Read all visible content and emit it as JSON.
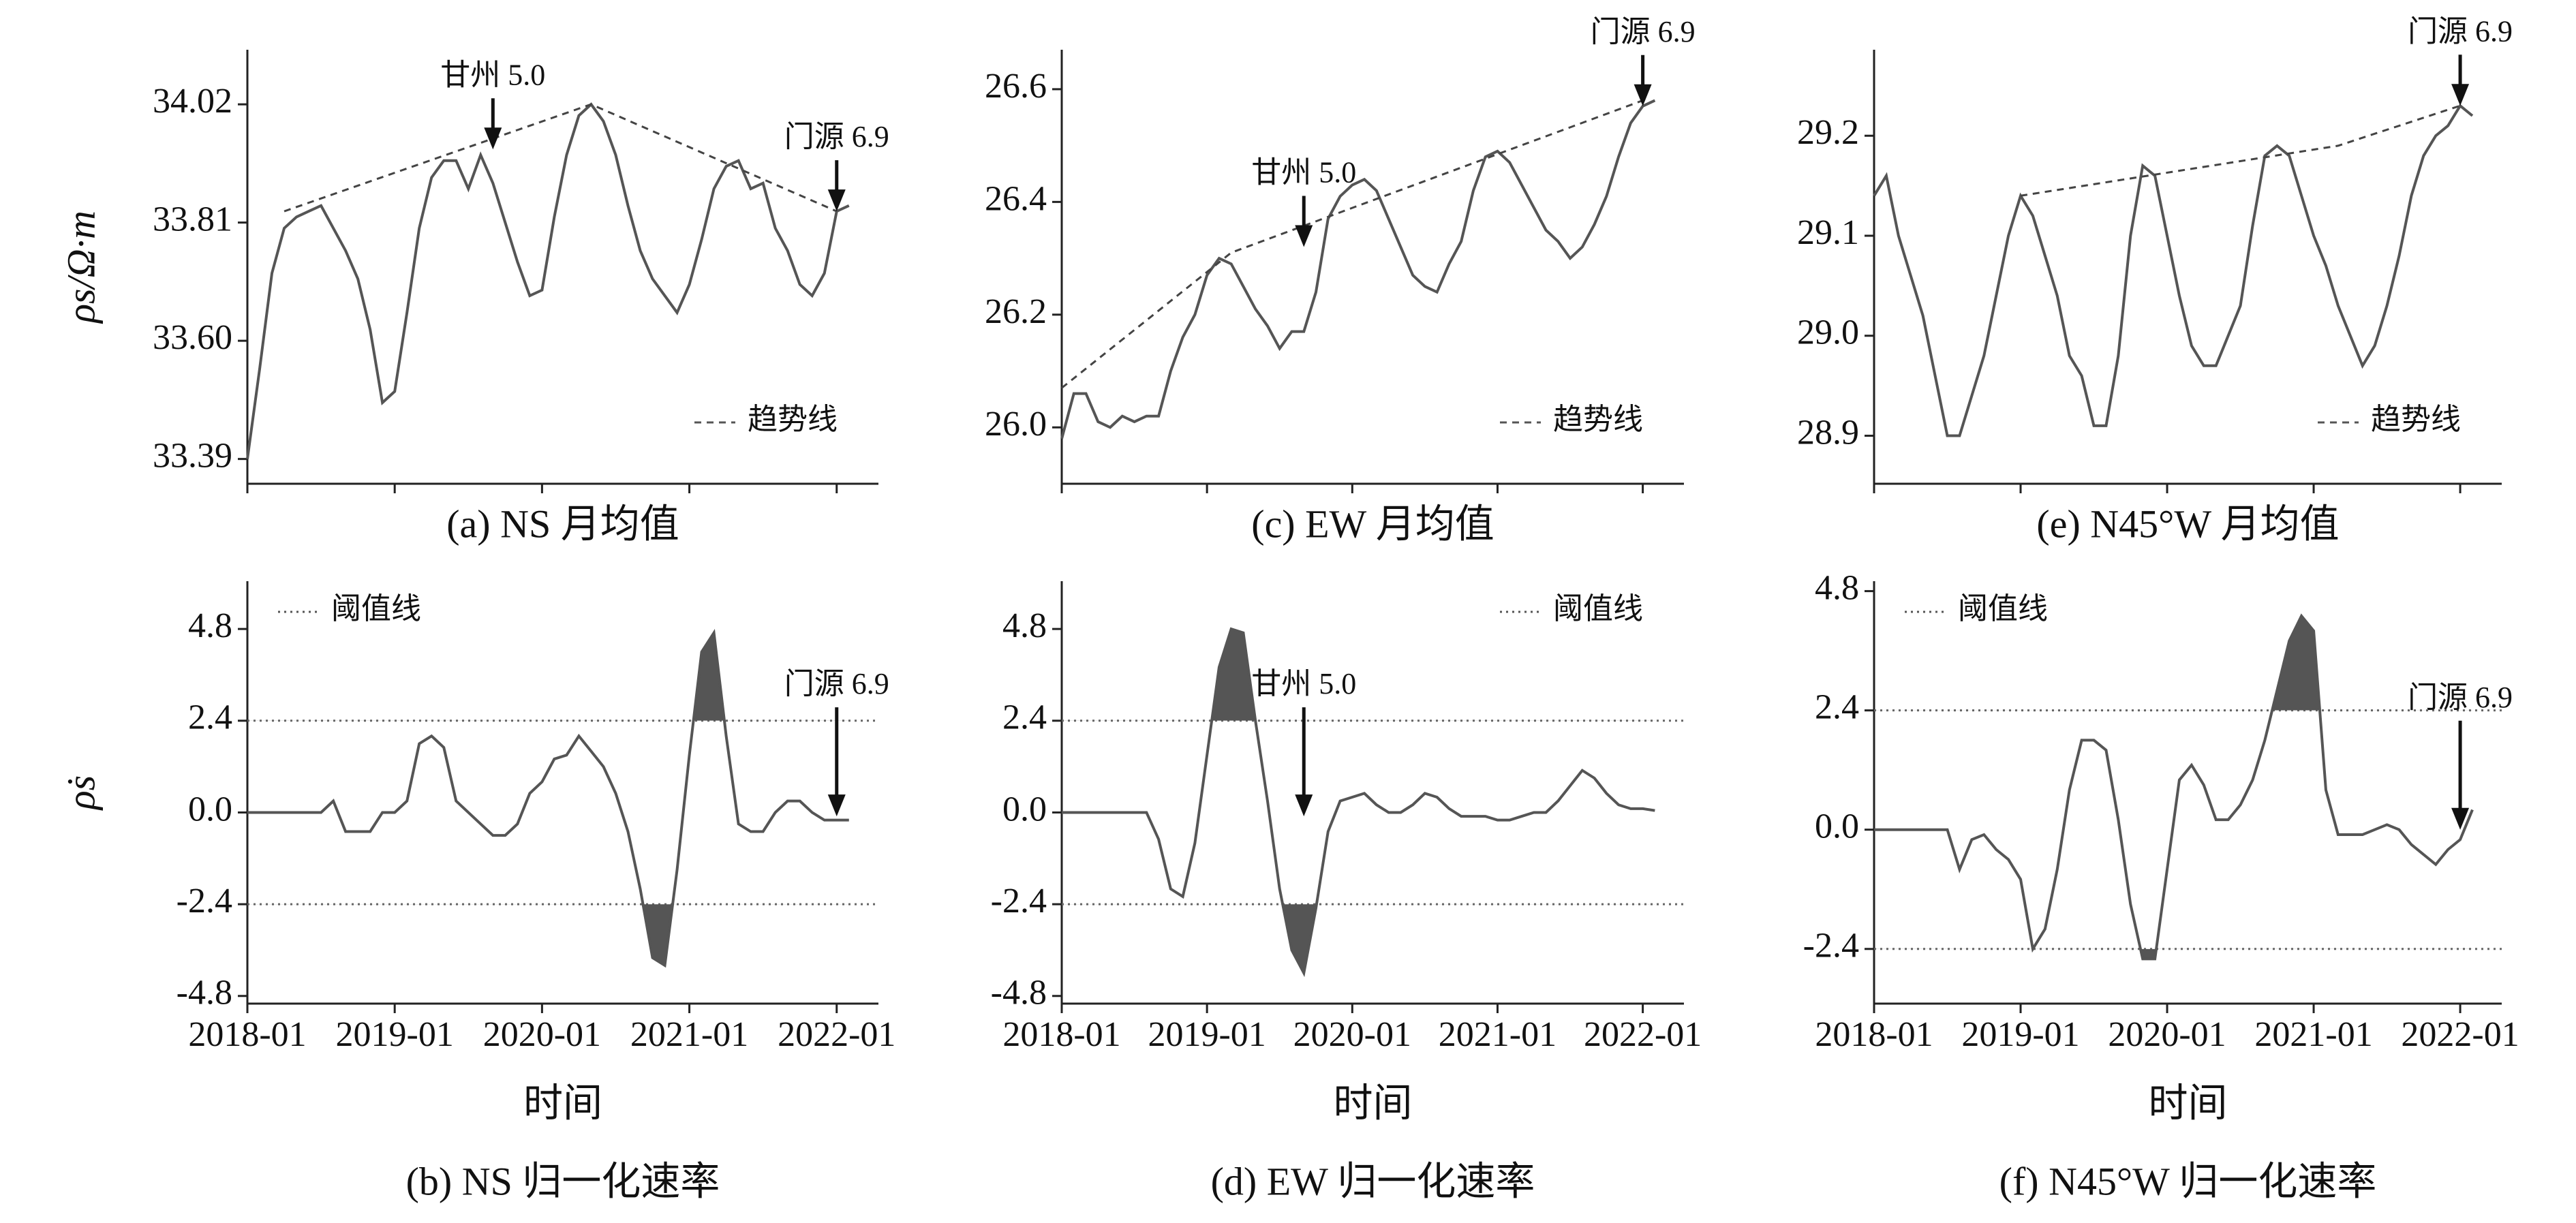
{
  "chart_data": [
    {
      "type": "line",
      "caption": "(a) NS 月均值",
      "ylabel": "ρs/Ω·m",
      "x": [
        "2018-01",
        "2018-02",
        "2018-03",
        "2018-04",
        "2018-05",
        "2018-06",
        "2018-07",
        "2018-08",
        "2018-09",
        "2018-10",
        "2018-11",
        "2018-12",
        "2019-01",
        "2019-02",
        "2019-03",
        "2019-04",
        "2019-05",
        "2019-06",
        "2019-07",
        "2019-08",
        "2019-09",
        "2019-10",
        "2019-11",
        "2019-12",
        "2020-01",
        "2020-02",
        "2020-03",
        "2020-04",
        "2020-05",
        "2020-06",
        "2020-07",
        "2020-08",
        "2020-09",
        "2020-10",
        "2020-11",
        "2020-12",
        "2021-01",
        "2021-02",
        "2021-03",
        "2021-04",
        "2021-05",
        "2021-06",
        "2021-07",
        "2021-08",
        "2021-09",
        "2021-10",
        "2021-11",
        "2021-12",
        "2022-01",
        "2022-02"
      ],
      "values": [
        33.39,
        33.55,
        33.72,
        33.8,
        33.82,
        33.83,
        33.84,
        33.8,
        33.76,
        33.71,
        33.62,
        33.49,
        33.51,
        33.65,
        33.8,
        33.89,
        33.92,
        33.92,
        33.87,
        33.93,
        33.88,
        33.81,
        33.74,
        33.68,
        33.69,
        33.82,
        33.93,
        34.0,
        34.02,
        33.99,
        33.93,
        33.84,
        33.76,
        33.71,
        33.68,
        33.65,
        33.7,
        33.78,
        33.87,
        33.91,
        33.92,
        33.87,
        33.88,
        33.8,
        33.76,
        33.7,
        33.68,
        33.72,
        33.83,
        33.84
      ],
      "color": "#555555",
      "trend": {
        "name": "趋势线",
        "x": [
          "2018-04",
          "2020-05",
          "2022-01"
        ],
        "values": [
          33.83,
          34.02,
          33.83
        ]
      },
      "annotations": [
        {
          "text": "甘州 5.0",
          "x": "2019-09",
          "y": 33.94
        },
        {
          "text": "门源 6.9",
          "x": "2022-01",
          "y": 33.83
        }
      ],
      "ylim": [
        33.346,
        34.117
      ],
      "yticks": [
        {
          "value": 33.39,
          "label": "33.39"
        },
        {
          "value": 33.6,
          "label": "33.60"
        },
        33.81,
        34.02
      ],
      "xticks": [
        "2018-01",
        "2019-01",
        "2020-01",
        "2021-01",
        "2022-01"
      ],
      "legend": "lower right"
    },
    {
      "type": "line",
      "caption": "(b) NS 归一化速率",
      "ylabel": "ρ̇s",
      "xlabel": "时间",
      "x": [
        "2018-01",
        "2018-02",
        "2018-03",
        "2018-04",
        "2018-05",
        "2018-06",
        "2018-07",
        "2018-08",
        "2018-09",
        "2018-10",
        "2018-11",
        "2018-12",
        "2019-01",
        "2019-02",
        "2019-03",
        "2019-04",
        "2019-05",
        "2019-06",
        "2019-07",
        "2019-08",
        "2019-09",
        "2019-10",
        "2019-11",
        "2019-12",
        "2020-01",
        "2020-02",
        "2020-03",
        "2020-04",
        "2020-05",
        "2020-06",
        "2020-07",
        "2020-08",
        "2020-09",
        "2020-10",
        "2020-11",
        "2020-12",
        "2021-01",
        "2021-02",
        "2021-03",
        "2021-04",
        "2021-05",
        "2021-06",
        "2021-07",
        "2021-08",
        "2021-09",
        "2021-10",
        "2021-11",
        "2021-12",
        "2022-01",
        "2022-02"
      ],
      "values": [
        0,
        0,
        0,
        0,
        0,
        0,
        0,
        0.3,
        -0.5,
        -0.5,
        -0.5,
        0,
        0,
        0.3,
        1.8,
        2.0,
        1.7,
        0.3,
        0,
        -0.3,
        -0.6,
        -0.6,
        -0.3,
        0.5,
        0.8,
        1.4,
        1.5,
        2.0,
        1.6,
        1.2,
        0.5,
        -0.5,
        -2.0,
        -3.8,
        -4.0,
        -1.5,
        1.5,
        4.2,
        4.7,
        2.0,
        -0.3,
        -0.5,
        -0.5,
        0,
        0.3,
        0.3,
        0,
        -0.2,
        -0.2,
        -0.2
      ],
      "color": "#555555",
      "threshold": {
        "name": "阈值线",
        "values": [
          2.4,
          -2.4
        ]
      },
      "annotations": [
        {
          "text": "门源 6.9",
          "x": "2022-01",
          "y": -0.1
        }
      ],
      "ylim": [
        -5.0,
        6.05
      ],
      "yticks": [
        -4.8,
        -2.4,
        {
          "value": 0,
          "label": "0.0"
        },
        2.4,
        4.8
      ],
      "xticks": [
        "2018-01",
        "2019-01",
        "2020-01",
        "2021-01",
        "2022-01"
      ],
      "legend": "upper left"
    },
    {
      "type": "line",
      "caption": "(c) EW 月均值",
      "x": [
        "2018-01",
        "2018-02",
        "2018-03",
        "2018-04",
        "2018-05",
        "2018-06",
        "2018-07",
        "2018-08",
        "2018-09",
        "2018-10",
        "2018-11",
        "2018-12",
        "2019-01",
        "2019-02",
        "2019-03",
        "2019-04",
        "2019-05",
        "2019-06",
        "2019-07",
        "2019-08",
        "2019-09",
        "2019-10",
        "2019-11",
        "2019-12",
        "2020-01",
        "2020-02",
        "2020-03",
        "2020-04",
        "2020-05",
        "2020-06",
        "2020-07",
        "2020-08",
        "2020-09",
        "2020-10",
        "2020-11",
        "2020-12",
        "2021-01",
        "2021-02",
        "2021-03",
        "2021-04",
        "2021-05",
        "2021-06",
        "2021-07",
        "2021-08",
        "2021-09",
        "2021-10",
        "2021-11",
        "2021-12",
        "2022-01",
        "2022-02"
      ],
      "values": [
        25.98,
        26.06,
        26.06,
        26.01,
        26.0,
        26.02,
        26.01,
        26.02,
        26.02,
        26.1,
        26.16,
        26.2,
        26.27,
        26.3,
        26.29,
        26.25,
        26.21,
        26.18,
        26.14,
        26.17,
        26.17,
        26.24,
        26.37,
        26.41,
        26.43,
        26.44,
        26.42,
        26.37,
        26.32,
        26.27,
        26.25,
        26.24,
        26.29,
        26.33,
        26.42,
        26.48,
        26.49,
        26.47,
        26.43,
        26.39,
        26.35,
        26.33,
        26.3,
        26.32,
        26.36,
        26.41,
        26.48,
        26.54,
        26.57,
        26.58
      ],
      "color": "#555555",
      "trend": {
        "name": "趋势线",
        "x": [
          "2018-01",
          "2019-03",
          "2022-01"
        ],
        "values": [
          26.07,
          26.31,
          26.58
        ]
      },
      "annotations": [
        {
          "text": "甘州 5.0",
          "x": "2019-09",
          "y": 26.32
        },
        {
          "text": "门源 6.9",
          "x": "2022-01",
          "y": 26.57
        }
      ],
      "ylim": [
        25.9,
        26.67
      ],
      "yticks": [
        {
          "value": 26.0,
          "label": "26.0"
        },
        26.2,
        26.4,
        26.6
      ],
      "xticks": [
        "2018-01",
        "2019-01",
        "2020-01",
        "2021-01",
        "2022-01"
      ],
      "legend": "lower right"
    },
    {
      "type": "line",
      "caption": "(d) EW 归一化速率",
      "xlabel": "时间",
      "x": [
        "2018-01",
        "2018-02",
        "2018-03",
        "2018-04",
        "2018-05",
        "2018-06",
        "2018-07",
        "2018-08",
        "2018-09",
        "2018-10",
        "2018-11",
        "2018-12",
        "2019-01",
        "2019-02",
        "2019-03",
        "2019-04",
        "2019-05",
        "2019-06",
        "2019-07",
        "2019-08",
        "2019-09",
        "2019-10",
        "2019-11",
        "2019-12",
        "2020-01",
        "2020-02",
        "2020-03",
        "2020-04",
        "2020-05",
        "2020-06",
        "2020-07",
        "2020-08",
        "2020-09",
        "2020-10",
        "2020-11",
        "2020-12",
        "2021-01",
        "2021-02",
        "2021-03",
        "2021-04",
        "2021-05",
        "2021-06",
        "2021-07",
        "2021-08",
        "2021-09",
        "2021-10",
        "2021-11",
        "2021-12",
        "2022-01",
        "2022-02"
      ],
      "values": [
        0,
        0,
        0,
        0,
        0,
        0,
        0,
        0,
        -0.7,
        -2.0,
        -2.2,
        -0.8,
        1.5,
        3.8,
        4.8,
        4.7,
        2.4,
        0.3,
        -2.0,
        -3.6,
        -4.2,
        -2.5,
        -0.5,
        0.3,
        0.4,
        0.5,
        0.2,
        0,
        0,
        0.2,
        0.5,
        0.4,
        0.1,
        -0.1,
        -0.1,
        -0.1,
        -0.2,
        -0.2,
        -0.1,
        0,
        0,
        0.3,
        0.7,
        1.1,
        0.9,
        0.5,
        0.2,
        0.1,
        0.1,
        0.05
      ],
      "color": "#555555",
      "threshold": {
        "name": "阈值线",
        "values": [
          2.4,
          -2.4
        ]
      },
      "annotations": [
        {
          "text": "甘州 5.0",
          "x": "2019-09",
          "y": -0.1
        }
      ],
      "ylim": [
        -5.0,
        6.05
      ],
      "yticks": [
        -4.8,
        -2.4,
        {
          "value": 0,
          "label": "0.0"
        },
        2.4,
        4.8
      ],
      "xticks": [
        "2018-01",
        "2019-01",
        "2020-01",
        "2021-01",
        "2022-01"
      ],
      "legend": "upper right"
    },
    {
      "type": "line",
      "caption": "(e) N45°W 月均值",
      "x": [
        "2018-01",
        "2018-02",
        "2018-03",
        "2018-04",
        "2018-05",
        "2018-06",
        "2018-07",
        "2018-08",
        "2018-09",
        "2018-10",
        "2018-11",
        "2018-12",
        "2019-01",
        "2019-02",
        "2019-03",
        "2019-04",
        "2019-05",
        "2019-06",
        "2019-07",
        "2019-08",
        "2019-09",
        "2019-10",
        "2019-11",
        "2019-12",
        "2020-01",
        "2020-02",
        "2020-03",
        "2020-04",
        "2020-05",
        "2020-06",
        "2020-07",
        "2020-08",
        "2020-09",
        "2020-10",
        "2020-11",
        "2020-12",
        "2021-01",
        "2021-02",
        "2021-03",
        "2021-04",
        "2021-05",
        "2021-06",
        "2021-07",
        "2021-08",
        "2021-09",
        "2021-10",
        "2021-11",
        "2021-12",
        "2022-01",
        "2022-02"
      ],
      "values": [
        29.14,
        29.16,
        29.1,
        29.06,
        29.02,
        28.96,
        28.9,
        28.9,
        28.94,
        28.98,
        29.04,
        29.1,
        29.14,
        29.12,
        29.08,
        29.04,
        28.98,
        28.96,
        28.91,
        28.91,
        28.98,
        29.1,
        29.17,
        29.16,
        29.1,
        29.04,
        28.99,
        28.97,
        28.97,
        29.0,
        29.03,
        29.11,
        29.18,
        29.19,
        29.18,
        29.14,
        29.1,
        29.07,
        29.03,
        29.0,
        28.97,
        28.99,
        29.03,
        29.08,
        29.14,
        29.18,
        29.2,
        29.21,
        29.23,
        29.22
      ],
      "color": "#555555",
      "trend": {
        "name": "趋势线",
        "x": [
          "2019-01",
          "2021-03",
          "2022-01"
        ],
        "values": [
          29.14,
          29.19,
          29.23
        ]
      },
      "annotations": [
        {
          "text": "门源 6.9",
          "x": "2022-01",
          "y": 29.23
        }
      ],
      "ylim": [
        28.852,
        29.286
      ],
      "yticks": [
        28.9,
        {
          "value": 29.0,
          "label": "29.0"
        },
        29.1,
        29.2
      ],
      "xticks": [
        "2018-01",
        "2019-01",
        "2020-01",
        "2021-01",
        "2022-01"
      ],
      "legend": "lower right"
    },
    {
      "type": "line",
      "caption": "(f) N45°W 归一化速率",
      "xlabel": "时间",
      "x": [
        "2018-01",
        "2018-02",
        "2018-03",
        "2018-04",
        "2018-05",
        "2018-06",
        "2018-07",
        "2018-08",
        "2018-09",
        "2018-10",
        "2018-11",
        "2018-12",
        "2019-01",
        "2019-02",
        "2019-03",
        "2019-04",
        "2019-05",
        "2019-06",
        "2019-07",
        "2019-08",
        "2019-09",
        "2019-10",
        "2019-11",
        "2019-12",
        "2020-01",
        "2020-02",
        "2020-03",
        "2020-04",
        "2020-05",
        "2020-06",
        "2020-07",
        "2020-08",
        "2020-09",
        "2020-10",
        "2020-11",
        "2020-12",
        "2021-01",
        "2021-02",
        "2021-03",
        "2021-04",
        "2021-05",
        "2021-06",
        "2021-07",
        "2021-08",
        "2021-09",
        "2021-10",
        "2021-11",
        "2021-12",
        "2022-01",
        "2022-02"
      ],
      "values": [
        0,
        0,
        0,
        0,
        0,
        0,
        0,
        -0.8,
        -0.2,
        -0.1,
        -0.4,
        -0.6,
        -1.0,
        -2.4,
        -2.0,
        -0.8,
        0.8,
        1.8,
        1.8,
        1.6,
        0.2,
        -1.5,
        -2.6,
        -2.6,
        -0.8,
        1.0,
        1.3,
        0.9,
        0.2,
        0.2,
        0.5,
        1.0,
        1.8,
        2.8,
        3.8,
        4.3,
        4.0,
        0.8,
        -0.1,
        -0.1,
        -0.1,
        0.0,
        0.1,
        0.0,
        -0.3,
        -0.5,
        -0.7,
        -0.4,
        -0.2,
        0.4
      ],
      "color": "#555555",
      "threshold": {
        "name": "阈值线",
        "values": [
          2.4,
          -2.4
        ]
      },
      "annotations": [
        {
          "text": "门源 6.9",
          "x": "2022-01",
          "y": 0.0
        }
      ],
      "ylim": [
        -3.5,
        5.0
      ],
      "yticks": [
        -2.4,
        {
          "value": 0,
          "label": "0.0"
        },
        2.4,
        4.8
      ],
      "xticks": [
        "2018-01",
        "2019-01",
        "2020-01",
        "2021-01",
        "2022-01"
      ],
      "legend": "upper left"
    }
  ]
}
